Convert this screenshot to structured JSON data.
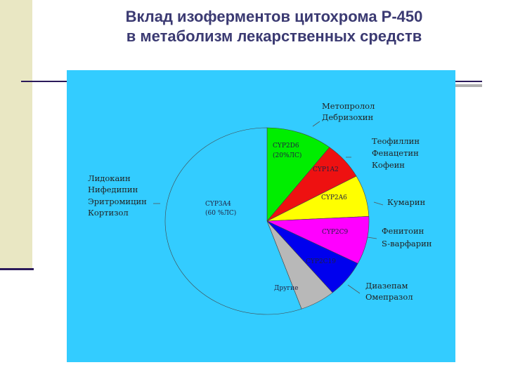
{
  "title": {
    "line1": "Вклад изоферментов цитохрома Р-450",
    "line2": "в метаболизм лекарственных средств"
  },
  "chart_data": {
    "type": "pie",
    "title": "",
    "slices": [
      {
        "key": "cyp2d6",
        "label": "CYP2D6",
        "sublabel": "(20%ЛС)",
        "value": 10.5,
        "color": "#00ee00",
        "drugs": [
          "Метопролол",
          "Дебризохин"
        ]
      },
      {
        "key": "cyp1a2",
        "label": "CYP1A2",
        "sublabel": "",
        "value": 6.5,
        "color": "#ee1111",
        "drugs": [
          "Теофиллин",
          "Фенацетин",
          "Кофеин"
        ]
      },
      {
        "key": "cyp2a6",
        "label": "CYP2A6",
        "sublabel": "",
        "value": 7.2,
        "color": "#ffff00",
        "drugs": [
          "Кумарин"
        ]
      },
      {
        "key": "cyp2c9",
        "label": "CYP2C9",
        "sublabel": "",
        "value": 8.3,
        "color": "#ff00ff",
        "drugs": [
          "Фенитоин",
          "S-варфарин"
        ]
      },
      {
        "key": "cyp2c19",
        "label": "CYP2C19",
        "sublabel": "",
        "value": 6.4,
        "color": "#0000ee",
        "drugs": [
          "Диазепам",
          "Омепразол"
        ]
      },
      {
        "key": "other",
        "label": "Другие",
        "sublabel": "",
        "value": 5.6,
        "color": "#b8b8b8",
        "drugs": []
      },
      {
        "key": "cyp3a4",
        "label": "CYP3A4",
        "sublabel": "(60 %ЛС)",
        "value": 55.5,
        "color": "#33ccff",
        "drugs": [
          "Лидокаин",
          "Нифедипин",
          "Эритромицин",
          "Кортизол"
        ]
      }
    ]
  }
}
